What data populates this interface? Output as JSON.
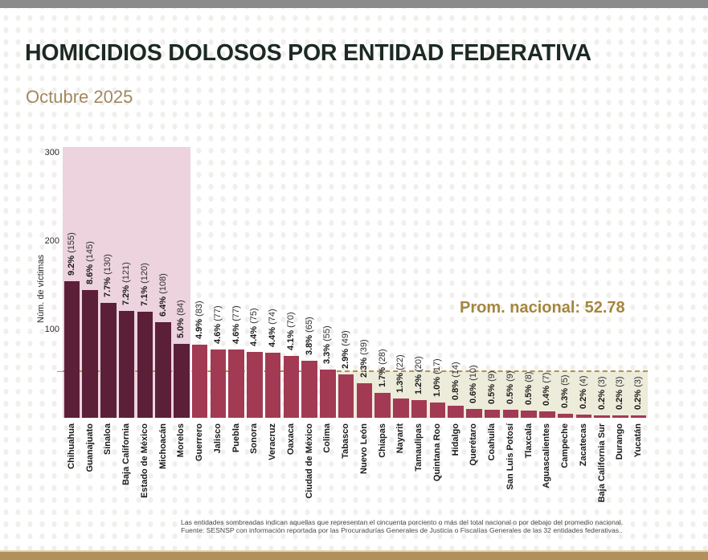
{
  "page": {
    "title": "HOMICIDIOS DOLOSOS POR ENTIDAD FEDERATIVA",
    "subtitle": "Octubre 2025",
    "footnote_line1": "Las entidades sombreadas indican aquellas que representan el cincuenta porciento o más del total nacional o por debajo del promedio nacional.",
    "footnote_line2": "Fuente: SESNSP con información reportada por las Procuradurías Generales de Justicia o Fiscalías Generales de las 32 entidades federativas.."
  },
  "chart_data": {
    "type": "bar",
    "title": "HOMICIDIOS DOLOSOS POR ENTIDAD FEDERATIVA",
    "subtitle": "Octubre 2025",
    "ylabel": "Núm. de víctimas",
    "ylim": [
      0,
      300
    ],
    "yticks": [
      100,
      200,
      300
    ],
    "grid": false,
    "legend": "none",
    "annotation": "Prom. nacional: 52.78",
    "national_average": 52.78,
    "categories": [
      "Chihuahua",
      "Guanajuato",
      "Sinaloa",
      "Baja California",
      "Estado de México",
      "Michoacán",
      "Morelos",
      "Guerrero",
      "Jalisco",
      "Puebla",
      "Sonora",
      "Veracruz",
      "Oaxaca",
      "Ciudad de México",
      "Colima",
      "Tabasco",
      "Nuevo León",
      "Chiapas",
      "Nayarit",
      "Tamaulipas",
      "Quintana Roo",
      "Hidalgo",
      "Querétaro",
      "Coahuila",
      "San Luis Potosí",
      "Tlaxcala",
      "Aguascalientes",
      "Campeche",
      "Zacatecas",
      "Baja California Sur",
      "Durango",
      "Yucatán"
    ],
    "values": [
      155,
      145,
      130,
      121,
      120,
      108,
      84,
      83,
      77,
      77,
      75,
      74,
      70,
      65,
      55,
      49,
      39,
      28,
      22,
      20,
      17,
      14,
      10,
      9,
      9,
      8,
      7,
      5,
      4,
      3,
      3,
      3
    ],
    "percents": [
      "9.2",
      "8.6",
      "7.7",
      "7.2",
      "7.1",
      "6.4",
      "5.0",
      "4.9",
      "4.6",
      "4.6",
      "4.4",
      "4.4",
      "4.1",
      "3.8",
      "3.3",
      "2.9",
      "2.3",
      "1.7",
      "1.3",
      "1.2",
      "1.0",
      "0.8",
      "0.6",
      "0.5",
      "0.5",
      "0.5",
      "0.4",
      "0.3",
      "0.2",
      "0.2",
      "0.2",
      "0.2"
    ],
    "top50_shaded_count": 7,
    "below_average_start_index": 15,
    "colors": {
      "bar_dark": "#5c1f38",
      "bar_light": "#a23a54",
      "region_top50": "#ecd3de",
      "region_below_avg": "#edebda",
      "average_line": "#b3914d",
      "annotation_text": "#a3873f",
      "title_text": "#1d2a24",
      "subtitle_text": "#a3875e",
      "top_bar": "#8a8a8a",
      "bottom_bar": "#b2905a",
      "bottom_bar_edge": "#ddd0a9"
    }
  }
}
